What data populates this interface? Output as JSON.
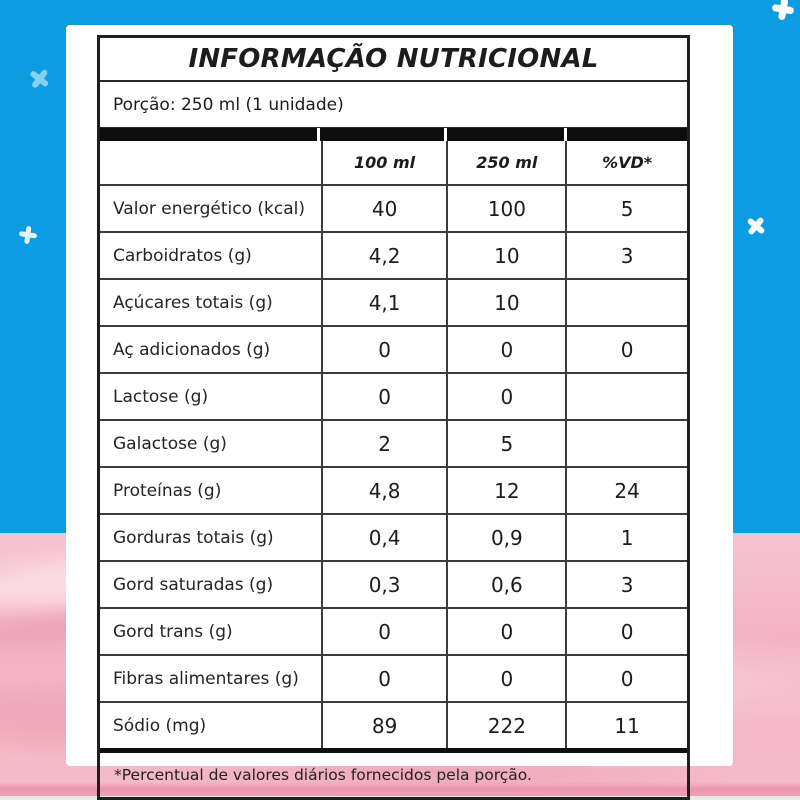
{
  "background": {
    "sky_blue": "#0d9ce1",
    "milk_pink": "#f3b2c3",
    "bottom_strip": "#e8eaec"
  },
  "label": {
    "title": "INFORMAÇÃO NUTRICIONAL",
    "portion": "Porção: 250 ml (1 unidade)",
    "columns": [
      "",
      "100 ml",
      "250 ml",
      "%VD*"
    ],
    "rows": [
      {
        "name": "Valor energético (kcal)",
        "per100": "40",
        "per250": "100",
        "vd": "5"
      },
      {
        "name": "Carboidratos (g)",
        "per100": "4,2",
        "per250": "10",
        "vd": "3"
      },
      {
        "name": "Açúcares totais (g)",
        "per100": "4,1",
        "per250": "10",
        "vd": ""
      },
      {
        "name": "Aç adicionados (g)",
        "per100": "0",
        "per250": "0",
        "vd": "0"
      },
      {
        "name": "Lactose (g)",
        "per100": "0",
        "per250": "0",
        "vd": ""
      },
      {
        "name": "Galactose (g)",
        "per100": "2",
        "per250": "5",
        "vd": ""
      },
      {
        "name": "Proteínas (g)",
        "per100": "4,8",
        "per250": "12",
        "vd": "24"
      },
      {
        "name": "Gorduras totais (g)",
        "per100": "0,4",
        "per250": "0,9",
        "vd": "1"
      },
      {
        "name": "Gord saturadas (g)",
        "per100": "0,3",
        "per250": "0,6",
        "vd": "3"
      },
      {
        "name": "Gord trans (g)",
        "per100": "0",
        "per250": "0",
        "vd": "0"
      },
      {
        "name": "Fibras alimentares (g)",
        "per100": "0",
        "per250": "0",
        "vd": "0"
      },
      {
        "name": "Sódio (mg)",
        "per100": "89",
        "per250": "222",
        "vd": "11"
      }
    ],
    "footnote": "*Percentual de valores diários fornecidos pela porção."
  }
}
